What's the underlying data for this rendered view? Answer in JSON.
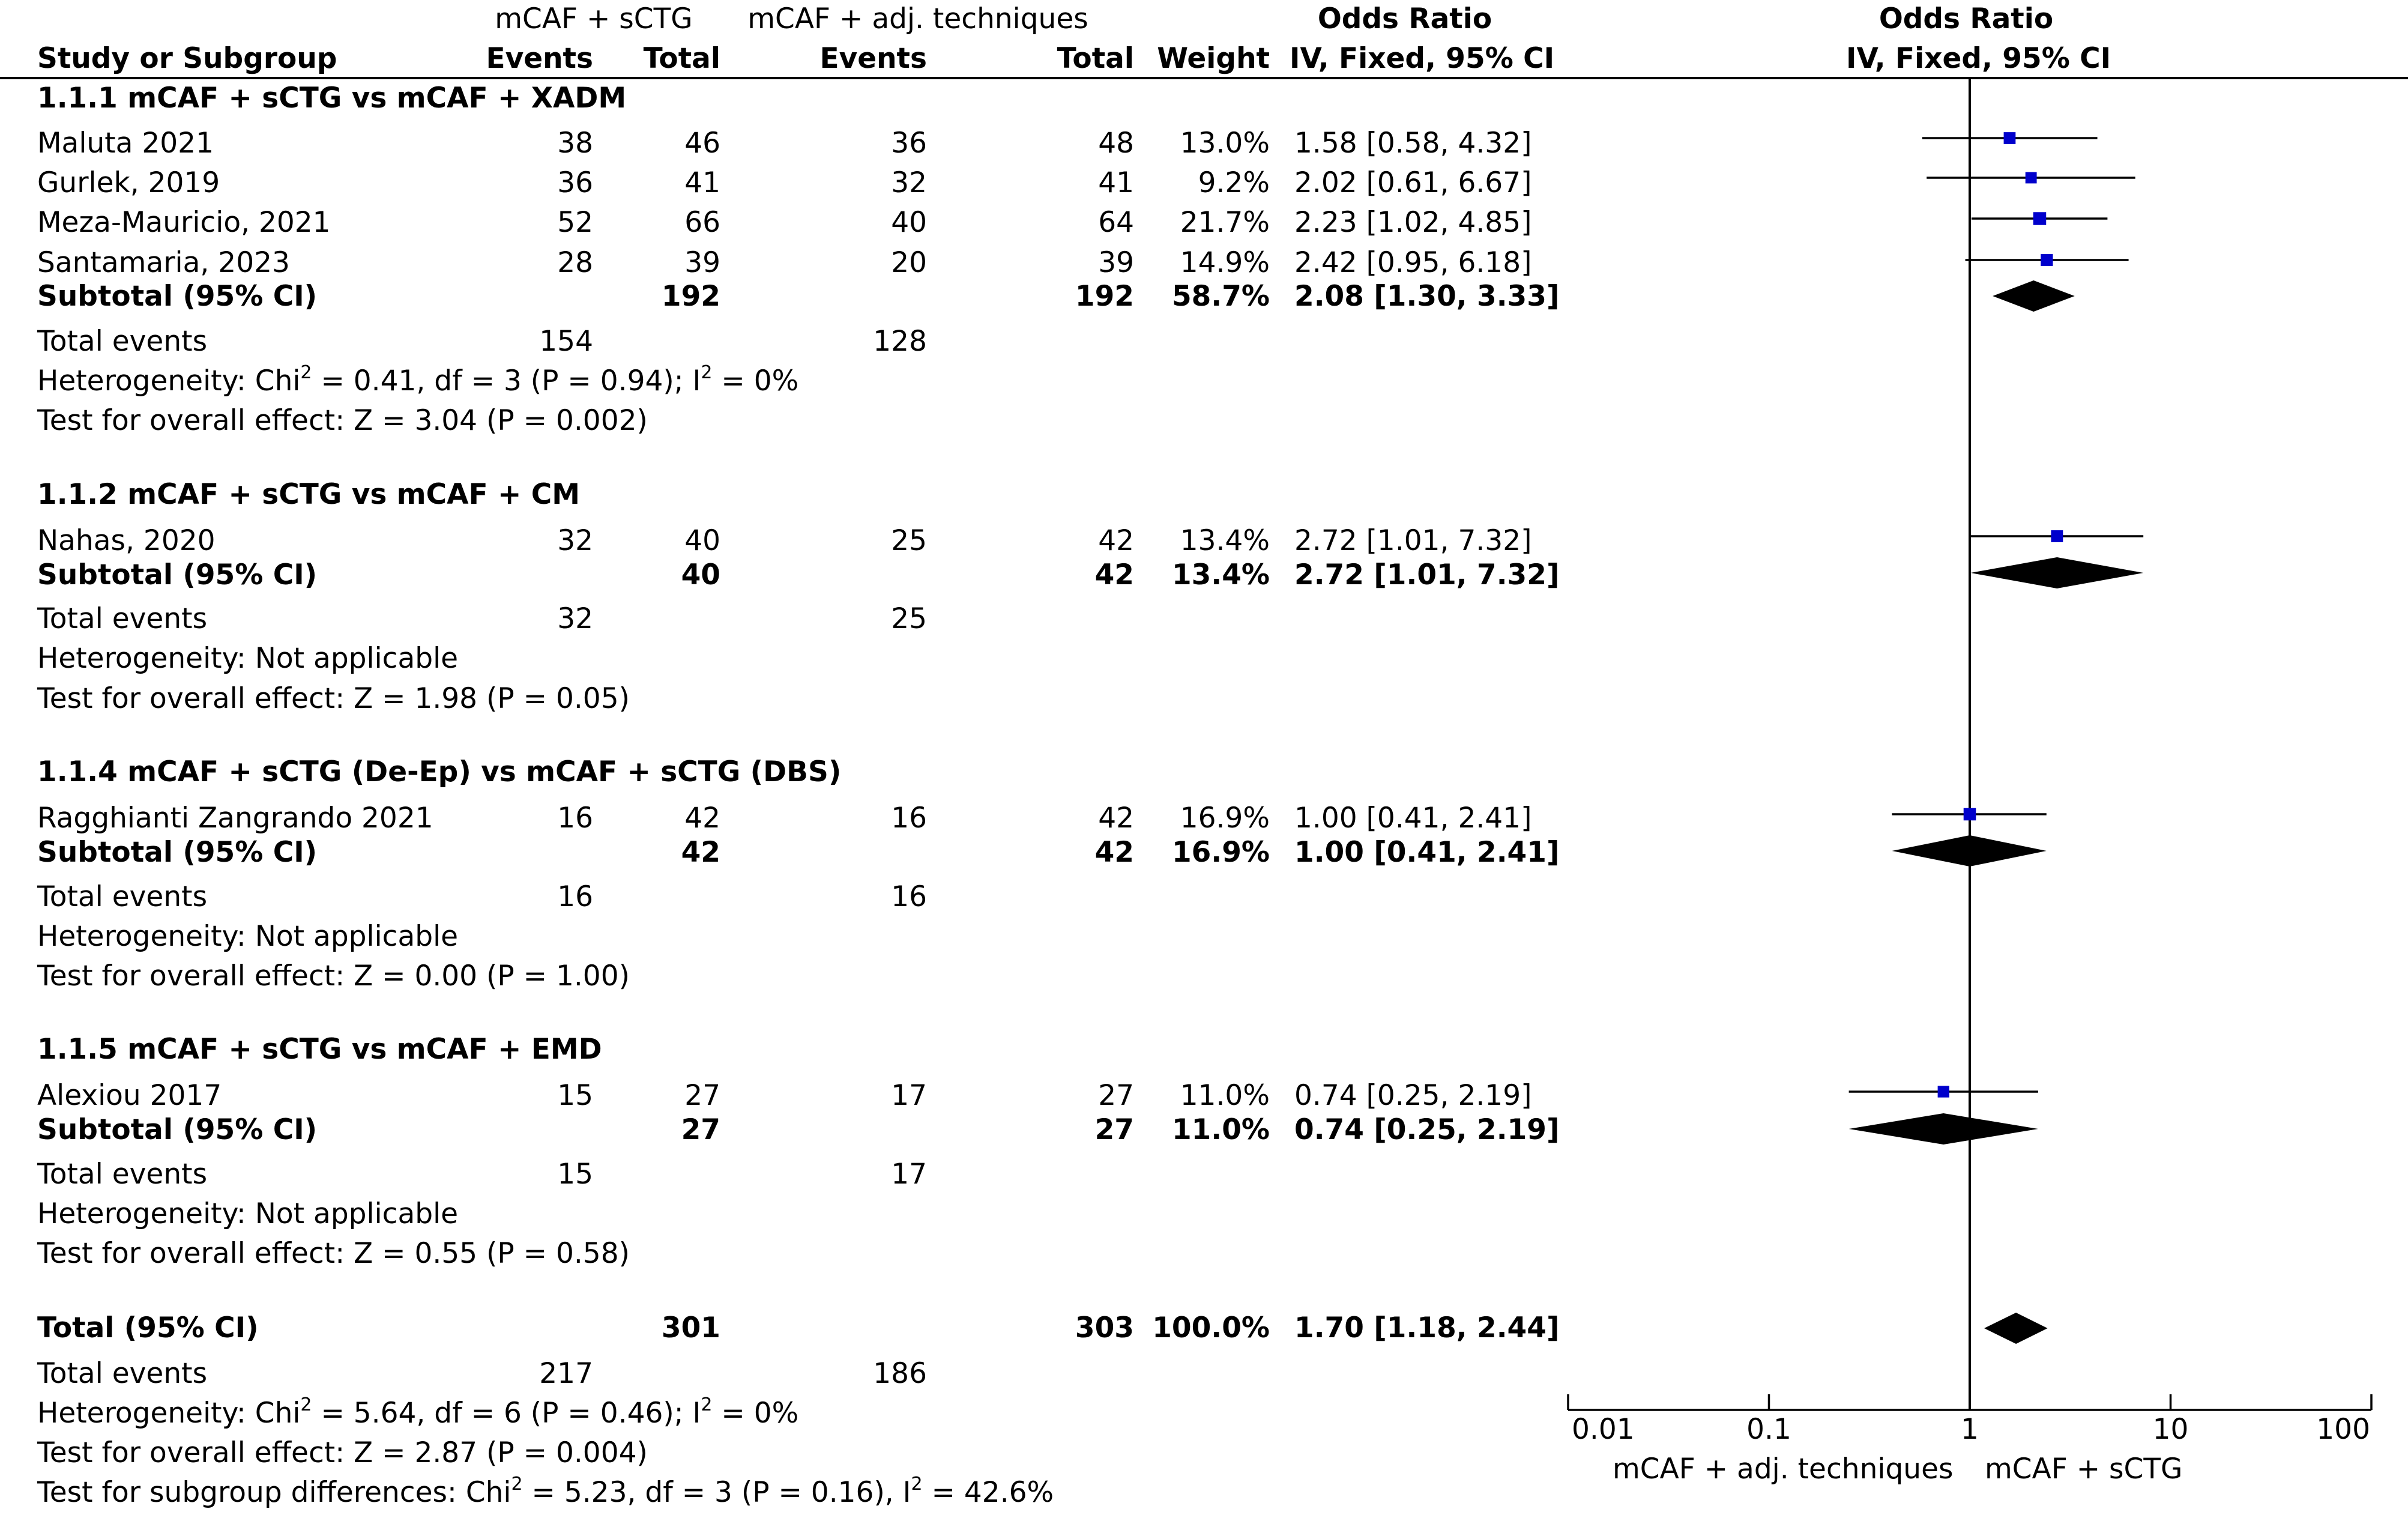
{
  "headers": {
    "study_label": "Study or Subgroup",
    "group1_name": "mCAF + sCTG",
    "group2_name": "mCAF + adj. techniques",
    "events": "Events",
    "total": "Total",
    "weight": "Weight",
    "or_title": "Odds Ratio",
    "or_method": "IV, Fixed, 95% CI",
    "plot_title": "Odds Ratio",
    "plot_method": "IV, Fixed, 95% CI"
  },
  "subgroups": [
    {
      "title": "1.1.1 mCAF + sCTG vs mCAF + XADM",
      "studies": [
        {
          "name": "Maluta 2021",
          "e1": "38",
          "t1": "46",
          "e2": "36",
          "t2": "48",
          "weight": "13.0%",
          "ci": "1.58 [0.58, 4.32]"
        },
        {
          "name": "Gurlek, 2019",
          "e1": "36",
          "t1": "41",
          "e2": "32",
          "t2": "41",
          "weight": "9.2%",
          "ci": "2.02 [0.61, 6.67]"
        },
        {
          "name": "Meza-Mauricio, 2021",
          "e1": "52",
          "t1": "66",
          "e2": "40",
          "t2": "64",
          "weight": "21.7%",
          "ci": "2.23 [1.02, 4.85]"
        },
        {
          "name": "Santamaria, 2023",
          "e1": "28",
          "t1": "39",
          "e2": "20",
          "t2": "39",
          "weight": "14.9%",
          "ci": "2.42 [0.95, 6.18]"
        }
      ],
      "subtotal": {
        "label": "Subtotal (95% CI)",
        "t1": "192",
        "t2": "192",
        "weight": "58.7%",
        "ci": "2.08 [1.30, 3.33]"
      },
      "events_label": "Total events",
      "events1": "154",
      "events2": "128",
      "het_pre": "Heterogeneity: Chi",
      "het_mid": " = 0.41, df = 3 (P = 0.94); I",
      "het_post": " = 0%",
      "het_na": "",
      "overall": "Test for overall effect: Z = 3.04 (P = 0.002)"
    },
    {
      "title": "1.1.2 mCAF + sCTG vs mCAF + CM",
      "studies": [
        {
          "name": "Nahas, 2020",
          "e1": "32",
          "t1": "40",
          "e2": "25",
          "t2": "42",
          "weight": "13.4%",
          "ci": "2.72 [1.01, 7.32]"
        }
      ],
      "subtotal": {
        "label": "Subtotal (95% CI)",
        "t1": "40",
        "t2": "42",
        "weight": "13.4%",
        "ci": "2.72 [1.01, 7.32]"
      },
      "events_label": "Total events",
      "events1": "32",
      "events2": "25",
      "het_na": "Heterogeneity: Not applicable",
      "overall": "Test for overall effect: Z = 1.98 (P = 0.05)"
    },
    {
      "title": "1.1.4 mCAF + sCTG (De-Ep) vs mCAF + sCTG (DBS)",
      "studies": [
        {
          "name": "Ragghianti Zangrando 2021",
          "e1": "16",
          "t1": "42",
          "e2": "16",
          "t2": "42",
          "weight": "16.9%",
          "ci": "1.00 [0.41, 2.41]"
        }
      ],
      "subtotal": {
        "label": "Subtotal (95% CI)",
        "t1": "42",
        "t2": "42",
        "weight": "16.9%",
        "ci": "1.00 [0.41, 2.41]"
      },
      "events_label": "Total events",
      "events1": "16",
      "events2": "16",
      "het_na": "Heterogeneity: Not applicable",
      "overall": "Test for overall effect: Z = 0.00 (P = 1.00)"
    },
    {
      "title": "1.1.5 mCAF + sCTG vs mCAF + EMD",
      "studies": [
        {
          "name": "Alexiou 2017",
          "e1": "15",
          "t1": "27",
          "e2": "17",
          "t2": "27",
          "weight": "11.0%",
          "ci": "0.74 [0.25, 2.19]"
        }
      ],
      "subtotal": {
        "label": "Subtotal (95% CI)",
        "t1": "27",
        "t2": "27",
        "weight": "11.0%",
        "ci": "0.74 [0.25, 2.19]"
      },
      "events_label": "Total events",
      "events1": "15",
      "events2": "17",
      "het_na": "Heterogeneity: Not applicable",
      "overall": "Test for overall effect: Z = 0.55 (P = 0.58)"
    }
  ],
  "total": {
    "label": "Total (95% CI)",
    "t1": "301",
    "t2": "303",
    "weight": "100.0%",
    "ci": "1.70 [1.18, 2.44]",
    "events_label": "Total events",
    "events1": "217",
    "events2": "186",
    "het_pre": "Heterogeneity: Chi",
    "het_mid": " = 5.64, df = 6 (P = 0.46); I",
    "het_post": " = 0%",
    "overall": "Test for overall effect: Z = 2.87 (P = 0.004)",
    "sub_pre": "Test for subgroup differences: Chi",
    "sub_mid": " = 5.23, df = 3 (P = 0.16), I",
    "sub_post": " = 42.6%",
    "sup": "2"
  },
  "axis": {
    "ticks": [
      "0.01",
      "0.1",
      "1",
      "10",
      "100"
    ],
    "favours_left": "mCAF + adj. techniques",
    "favours_right": "mCAF + sCTG"
  },
  "colors": {
    "square": "#0000cc",
    "diamond": "#000000",
    "line": "#000000"
  },
  "chart_data": {
    "type": "forest",
    "scale": "log",
    "xlim": [
      0.01,
      100
    ],
    "reference_line": 1,
    "measure": "Odds Ratio",
    "method": "IV, Fixed, 95% CI",
    "studies": [
      {
        "name": "Maluta 2021",
        "or": 1.58,
        "lo": 0.58,
        "hi": 4.32,
        "weight": 13.0
      },
      {
        "name": "Gurlek, 2019",
        "or": 2.02,
        "lo": 0.61,
        "hi": 6.67,
        "weight": 9.2
      },
      {
        "name": "Meza-Mauricio, 2021",
        "or": 2.23,
        "lo": 1.02,
        "hi": 4.85,
        "weight": 21.7
      },
      {
        "name": "Santamaria, 2023",
        "or": 2.42,
        "lo": 0.95,
        "hi": 6.18,
        "weight": 14.9
      },
      {
        "name": "Nahas, 2020",
        "or": 2.72,
        "lo": 1.01,
        "hi": 7.32,
        "weight": 13.4
      },
      {
        "name": "Ragghianti Zangrando 2021",
        "or": 1.0,
        "lo": 0.41,
        "hi": 2.41,
        "weight": 16.9
      },
      {
        "name": "Alexiou 2017",
        "or": 0.74,
        "lo": 0.25,
        "hi": 2.19,
        "weight": 11.0
      }
    ],
    "pooled": [
      {
        "name": "Subtotal 1.1.1",
        "or": 2.08,
        "lo": 1.3,
        "hi": 3.33
      },
      {
        "name": "Subtotal 1.1.2",
        "or": 2.72,
        "lo": 1.01,
        "hi": 7.32
      },
      {
        "name": "Subtotal 1.1.4",
        "or": 1.0,
        "lo": 0.41,
        "hi": 2.41
      },
      {
        "name": "Subtotal 1.1.5",
        "or": 0.74,
        "lo": 0.25,
        "hi": 2.19
      },
      {
        "name": "Total",
        "or": 1.7,
        "lo": 1.18,
        "hi": 2.44
      }
    ]
  }
}
